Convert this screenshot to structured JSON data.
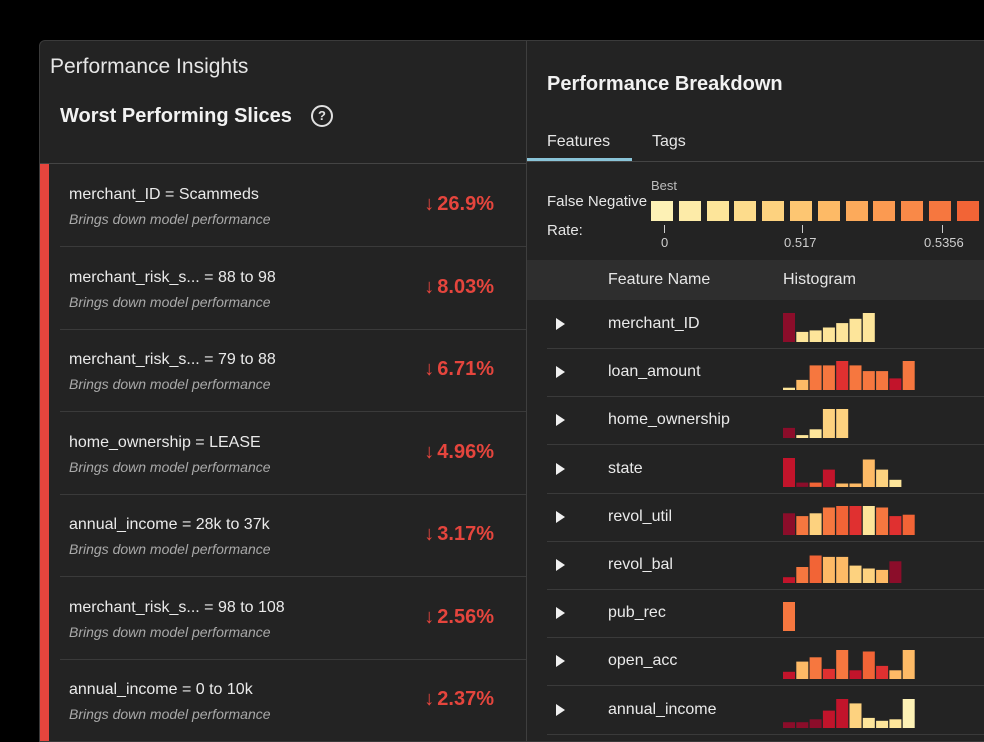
{
  "app_title": "Performance Insights",
  "left_panel": {
    "title": "Worst Performing Slices",
    "help_icon": "question-circle-icon",
    "accent_color": "#e5453d",
    "slices": [
      {
        "name": "merchant_ID = Scammeds",
        "subtitle": "Brings down model performance",
        "value": "26.9%"
      },
      {
        "name": "merchant_risk_s... = 88 to 98",
        "subtitle": "Brings down model performance",
        "value": "8.03%"
      },
      {
        "name": "merchant_risk_s... = 79 to 88",
        "subtitle": "Brings down model performance",
        "value": "6.71%"
      },
      {
        "name": "home_ownership = LEASE",
        "subtitle": "Brings down model performance",
        "value": "4.96%"
      },
      {
        "name": "annual_income = 28k to 37k",
        "subtitle": "Brings down model performance",
        "value": "3.17%"
      },
      {
        "name": "merchant_risk_s... = 98 to 108",
        "subtitle": "Brings down model performance",
        "value": "2.56%"
      },
      {
        "name": "annual_income = 0 to 10k",
        "subtitle": "Brings down model performance",
        "value": "2.37%"
      }
    ],
    "arrow_glyph": "↓"
  },
  "right_panel": {
    "title": "Performance Breakdown",
    "tabs": [
      {
        "label": "Features",
        "active": true
      },
      {
        "label": "Tags",
        "active": false
      }
    ],
    "metric": {
      "label_line1": "False Negative",
      "label_line2": "Rate:",
      "best_label": "Best",
      "scale_colors": [
        "#fdf1b5",
        "#fdeba8",
        "#fde59a",
        "#fddc8c",
        "#fdd27f",
        "#fdc672",
        "#fdba66",
        "#fcaa5b",
        "#fb9a51",
        "#f98948",
        "#f6773f",
        "#f26436"
      ],
      "tick_labels": [
        "0",
        "0.517",
        "0.5356"
      ]
    },
    "table": {
      "columns": [
        "Feature Name",
        "Histogram"
      ],
      "rows": [
        {
          "name": "merchant_ID",
          "bins": [
            {
              "v": 1.0,
              "c": "#8b0d2a"
            },
            {
              "v": 0.35,
              "c": "#fde59a"
            },
            {
              "v": 0.4,
              "c": "#fde59a"
            },
            {
              "v": 0.5,
              "c": "#fde59a"
            },
            {
              "v": 0.65,
              "c": "#fde59a"
            },
            {
              "v": 0.8,
              "c": "#fde59a"
            },
            {
              "v": 1.0,
              "c": "#fde59a"
            }
          ]
        },
        {
          "name": "loan_amount",
          "bins": [
            {
              "v": 0.08,
              "c": "#fde59a"
            },
            {
              "v": 0.35,
              "c": "#fdba66"
            },
            {
              "v": 0.85,
              "c": "#f6773f"
            },
            {
              "v": 0.85,
              "c": "#f6773f"
            },
            {
              "v": 1.0,
              "c": "#e03030"
            },
            {
              "v": 0.85,
              "c": "#f6773f"
            },
            {
              "v": 0.65,
              "c": "#f6773f"
            },
            {
              "v": 0.65,
              "c": "#f6773f"
            },
            {
              "v": 0.4,
              "c": "#c2142b"
            },
            {
              "v": 1.0,
              "c": "#f6773f"
            }
          ]
        },
        {
          "name": "home_ownership",
          "bins": [
            {
              "v": 0.35,
              "c": "#8b0d2a"
            },
            {
              "v": 0.1,
              "c": "#fde59a"
            },
            {
              "v": 0.3,
              "c": "#fde59a"
            },
            {
              "v": 1.0,
              "c": "#fdd27f"
            },
            {
              "v": 1.0,
              "c": "#fdd27f"
            }
          ]
        },
        {
          "name": "state",
          "bins": [
            {
              "v": 1.0,
              "c": "#c2142b"
            },
            {
              "v": 0.15,
              "c": "#8b0d2a"
            },
            {
              "v": 0.15,
              "c": "#f26436"
            },
            {
              "v": 0.6,
              "c": "#c2142b"
            },
            {
              "v": 0.12,
              "c": "#fdba66"
            },
            {
              "v": 0.12,
              "c": "#fdba66"
            },
            {
              "v": 0.95,
              "c": "#fdba66"
            },
            {
              "v": 0.6,
              "c": "#fdd27f"
            },
            {
              "v": 0.25,
              "c": "#fde59a"
            }
          ]
        },
        {
          "name": "revol_util",
          "bins": [
            {
              "v": 0.75,
              "c": "#8b0d2a"
            },
            {
              "v": 0.65,
              "c": "#f6773f"
            },
            {
              "v": 0.75,
              "c": "#fdd27f"
            },
            {
              "v": 0.95,
              "c": "#f6773f"
            },
            {
              "v": 1.0,
              "c": "#f26436"
            },
            {
              "v": 1.0,
              "c": "#e03030"
            },
            {
              "v": 1.0,
              "c": "#fde59a"
            },
            {
              "v": 0.95,
              "c": "#f6773f"
            },
            {
              "v": 0.65,
              "c": "#e03030"
            },
            {
              "v": 0.7,
              "c": "#f26436"
            }
          ]
        },
        {
          "name": "revol_bal",
          "bins": [
            {
              "v": 0.2,
              "c": "#c2142b"
            },
            {
              "v": 0.55,
              "c": "#f6773f"
            },
            {
              "v": 0.95,
              "c": "#f26436"
            },
            {
              "v": 0.9,
              "c": "#fdba66"
            },
            {
              "v": 0.9,
              "c": "#fdba66"
            },
            {
              "v": 0.6,
              "c": "#fdd27f"
            },
            {
              "v": 0.5,
              "c": "#fdd27f"
            },
            {
              "v": 0.45,
              "c": "#fdba66"
            },
            {
              "v": 0.75,
              "c": "#8b0d2a"
            }
          ]
        },
        {
          "name": "pub_rec",
          "bins": [
            {
              "v": 1.0,
              "c": "#f6773f"
            }
          ]
        },
        {
          "name": "open_acc",
          "bins": [
            {
              "v": 0.25,
              "c": "#c2142b"
            },
            {
              "v": 0.6,
              "c": "#fdba66"
            },
            {
              "v": 0.75,
              "c": "#f6773f"
            },
            {
              "v": 0.35,
              "c": "#e03030"
            },
            {
              "v": 1.0,
              "c": "#f6773f"
            },
            {
              "v": 0.3,
              "c": "#c2142b"
            },
            {
              "v": 0.95,
              "c": "#f26436"
            },
            {
              "v": 0.45,
              "c": "#e03030"
            },
            {
              "v": 0.3,
              "c": "#fdba66"
            },
            {
              "v": 1.0,
              "c": "#fdba66"
            }
          ]
        },
        {
          "name": "annual_income",
          "bins": [
            {
              "v": 0.2,
              "c": "#8b0d2a"
            },
            {
              "v": 0.2,
              "c": "#8b0d2a"
            },
            {
              "v": 0.3,
              "c": "#8b0d2a"
            },
            {
              "v": 0.6,
              "c": "#c2142b"
            },
            {
              "v": 1.0,
              "c": "#c2142b"
            },
            {
              "v": 0.85,
              "c": "#fdd27f"
            },
            {
              "v": 0.35,
              "c": "#fde59a"
            },
            {
              "v": 0.25,
              "c": "#fde59a"
            },
            {
              "v": 0.3,
              "c": "#fde59a"
            },
            {
              "v": 1.0,
              "c": "#fdf1b5"
            }
          ]
        }
      ]
    }
  }
}
